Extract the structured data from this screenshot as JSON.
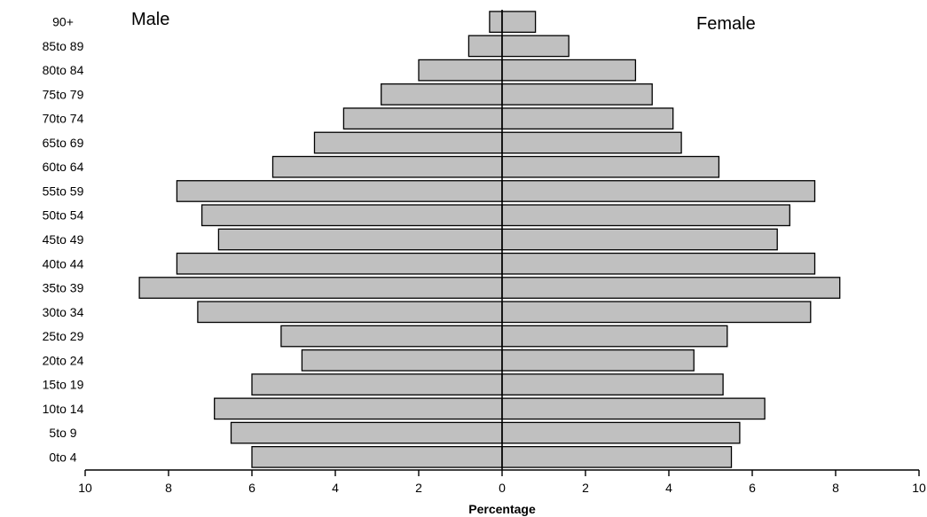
{
  "chart_data": {
    "type": "bar",
    "orientation": "horizontal",
    "layout": "population-pyramid",
    "categories": [
      "90+",
      "85to 89",
      "80to 84",
      "75to 79",
      "70to 74",
      "65to 69",
      "60to 64",
      "55to 59",
      "50to 54",
      "45to 49",
      "40to 44",
      "35to 39",
      "30to 34",
      "25to 29",
      "20to 24",
      "15to 19",
      "10to 14",
      "5to 9",
      "0to 4"
    ],
    "series": [
      {
        "name": "Male",
        "side": "left",
        "values": [
          0.3,
          0.8,
          2.0,
          2.9,
          3.8,
          4.5,
          5.5,
          7.8,
          7.2,
          6.8,
          7.8,
          8.7,
          7.3,
          5.3,
          4.8,
          6.0,
          6.9,
          6.5,
          6.0
        ]
      },
      {
        "name": "Female",
        "side": "right",
        "values": [
          0.8,
          1.6,
          3.2,
          3.6,
          4.1,
          4.3,
          5.2,
          7.5,
          6.9,
          6.6,
          7.5,
          8.1,
          7.4,
          5.4,
          4.6,
          5.3,
          6.3,
          5.7,
          5.5
        ]
      }
    ],
    "xlabel": "Percentage",
    "xlim": [
      -10,
      10
    ],
    "xticks": [
      -10,
      -8,
      -6,
      -4,
      -2,
      0,
      2,
      4,
      6,
      8,
      10
    ],
    "xtick_labels": [
      "10",
      "8",
      "6",
      "4",
      "2",
      "0",
      "2",
      "4",
      "6",
      "8",
      "10"
    ],
    "legend": "none",
    "grid": false,
    "colors": {
      "bar_fill": "#c0c0c0",
      "bar_stroke": "#000000",
      "axis": "#000000"
    }
  }
}
